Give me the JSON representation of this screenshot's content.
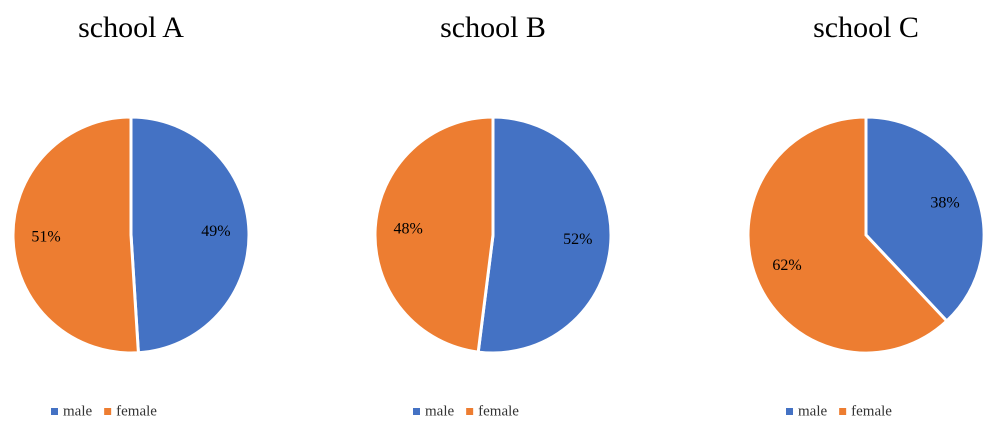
{
  "chart_data": [
    {
      "type": "pie",
      "title": "school A",
      "categories": [
        "male",
        "female"
      ],
      "values": [
        49,
        51
      ],
      "value_labels": [
        "49%",
        "51%"
      ],
      "colors": [
        "#4472c4",
        "#ed7d31"
      ],
      "legend": "bottom"
    },
    {
      "type": "pie",
      "title": "school B",
      "categories": [
        "male",
        "female"
      ],
      "values": [
        52,
        48
      ],
      "value_labels": [
        "52%",
        "48%"
      ],
      "colors": [
        "#4472c4",
        "#ed7d31"
      ],
      "legend": "bottom"
    },
    {
      "type": "pie",
      "title": "school C",
      "categories": [
        "male",
        "female"
      ],
      "values": [
        38,
        62
      ],
      "value_labels": [
        "38%",
        "62%"
      ],
      "colors": [
        "#4472c4",
        "#ed7d31"
      ],
      "legend": "bottom"
    }
  ]
}
